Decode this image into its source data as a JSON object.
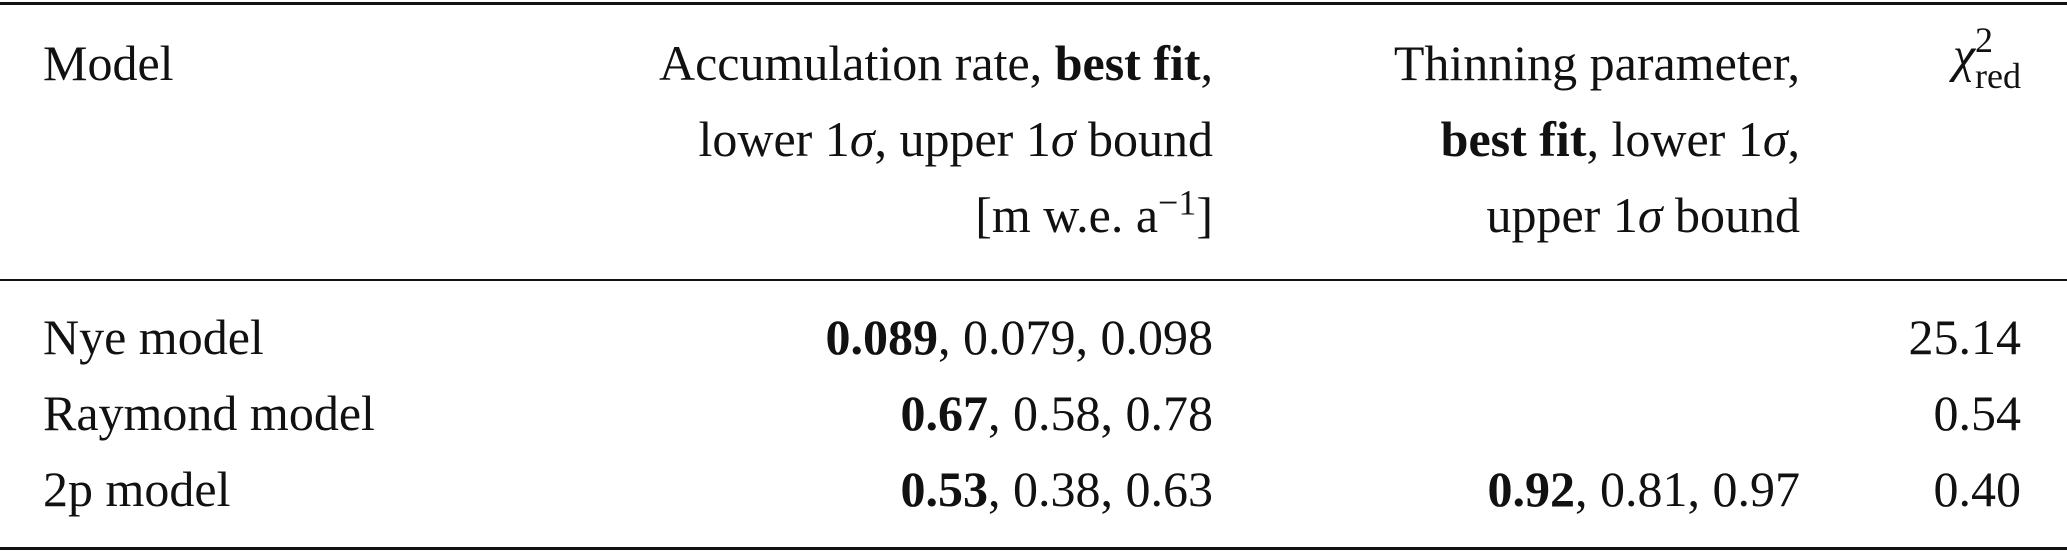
{
  "table": {
    "header": [
      [
        [
          {
            "text": "Model"
          }
        ]
      ],
      [
        [
          {
            "text": "Accumulation rate, "
          },
          {
            "text": "best fit",
            "bold": true
          },
          {
            "text": ","
          }
        ],
        [
          {
            "text": "lower 1"
          },
          {
            "text": "σ",
            "italic": true
          },
          {
            "text": ", upper 1"
          },
          {
            "text": "σ",
            "italic": true
          },
          {
            "text": " bound"
          }
        ],
        [
          {
            "text": "[m w.e. a"
          },
          {
            "text": "−1",
            "sup": true
          },
          {
            "text": "]"
          }
        ]
      ],
      [
        [
          {
            "text": "Thinning parameter,"
          }
        ],
        [
          {
            "text": "best fit",
            "bold": true
          },
          {
            "text": ", lower 1"
          },
          {
            "text": "σ",
            "italic": true
          },
          {
            "text": ","
          }
        ],
        [
          {
            "text": "upper 1"
          },
          {
            "text": "σ",
            "italic": true
          },
          {
            "text": " bound"
          }
        ]
      ],
      [
        [
          {
            "text": "χ",
            "italic": true
          },
          {
            "text": "2",
            "sup": true
          },
          {
            "text": "red",
            "sub": true
          }
        ]
      ]
    ],
    "rows": [
      [
        [
          {
            "text": "Nye model"
          }
        ],
        [
          {
            "text": "0.089",
            "bold": true
          },
          {
            "text": ", 0.079, 0.098"
          }
        ],
        [],
        [
          {
            "text": "25.14"
          }
        ]
      ],
      [
        [
          {
            "text": "Raymond model"
          }
        ],
        [
          {
            "text": "0.67",
            "bold": true
          },
          {
            "text": ", 0.58, 0.78"
          }
        ],
        [],
        [
          {
            "text": "0.54"
          }
        ]
      ],
      [
        [
          {
            "text": "2p model"
          }
        ],
        [
          {
            "text": "0.53",
            "bold": true
          },
          {
            "text": ", 0.38, 0.63"
          }
        ],
        [
          {
            "text": "0.92",
            "bold": true
          },
          {
            "text": ", 0.81, 0.97"
          }
        ],
        [
          {
            "text": "0.40"
          }
        ]
      ]
    ]
  }
}
